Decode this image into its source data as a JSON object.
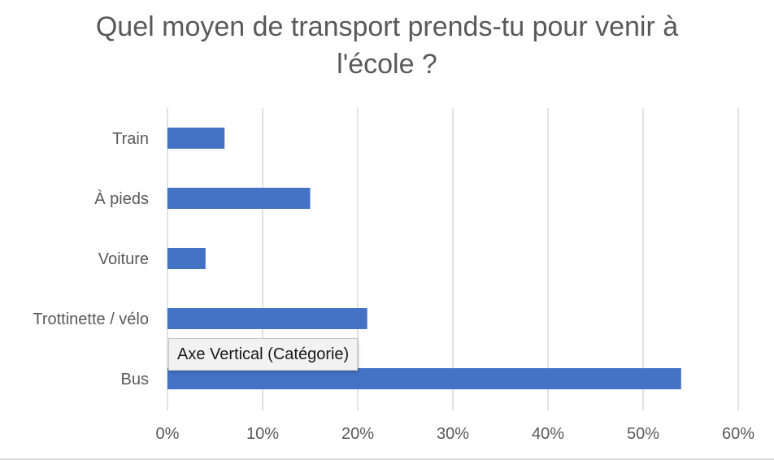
{
  "chart_data": {
    "type": "bar",
    "orientation": "horizontal",
    "title": "Quel moyen de transport prends-tu pour venir à\nl'école ?",
    "categories": [
      "Train",
      "À pieds",
      "Voiture",
      "Trottinette / vélo",
      "Bus"
    ],
    "values": [
      0.06,
      0.15,
      0.04,
      0.21,
      0.54
    ],
    "xlim": [
      0,
      0.6
    ],
    "xticks": [
      "0%",
      "10%",
      "20%",
      "30%",
      "40%",
      "50%",
      "60%"
    ],
    "grid": true,
    "legend": false,
    "bar_color": "#4472C4",
    "grid_color": "#d9d9d9",
    "text_color": "#595959"
  },
  "tooltip": {
    "text": "Axe Vertical (Catégorie)"
  }
}
